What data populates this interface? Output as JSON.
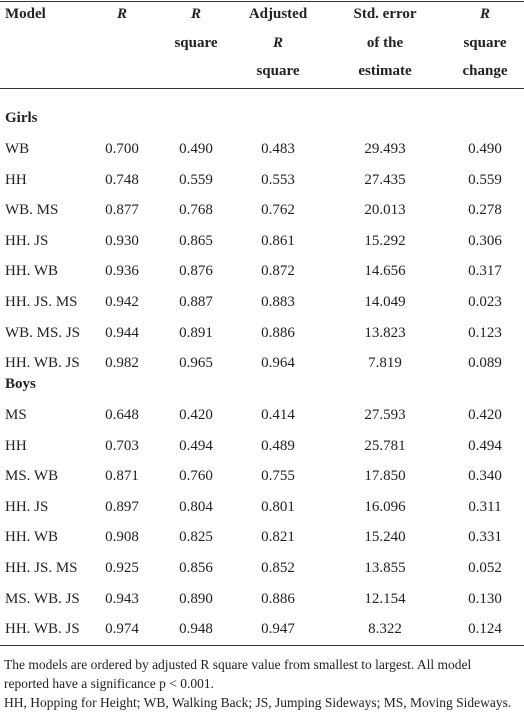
{
  "table": {
    "header": [
      [
        "Model"
      ],
      [
        "R"
      ],
      [
        "R",
        "square"
      ],
      [
        "Adjusted",
        "R",
        "square"
      ],
      [
        "Std. error",
        "of the",
        "estimate"
      ],
      [
        "R",
        "square",
        "change"
      ]
    ],
    "groups": [
      {
        "label": "Girls",
        "rows": [
          [
            "WB",
            "0.700",
            "0.490",
            "0.483",
            "29.493",
            "0.490"
          ],
          [
            "HH",
            "0.748",
            "0.559",
            "0.553",
            "27.435",
            "0.559"
          ],
          [
            "WB. MS",
            "0.877",
            "0.768",
            "0.762",
            "20.013",
            "0.278"
          ],
          [
            "HH. JS",
            "0.930",
            "0.865",
            "0.861",
            "15.292",
            "0.306"
          ],
          [
            "HH. WB",
            "0.936",
            "0.876",
            "0.872",
            "14.656",
            "0.317"
          ],
          [
            "HH. JS. MS",
            "0.942",
            "0.887",
            "0.883",
            "14.049",
            "0.023"
          ],
          [
            "WB. MS. JS",
            "0.944",
            "0.891",
            "0.886",
            "13.823",
            "0.123"
          ],
          [
            "HH. WB. JS",
            "0.982",
            "0.965",
            "0.964",
            "7.819",
            "0.089"
          ]
        ]
      },
      {
        "label": "Boys",
        "rows": [
          [
            "MS",
            "0.648",
            "0.420",
            "0.414",
            "27.593",
            "0.420"
          ],
          [
            "HH",
            "0.703",
            "0.494",
            "0.489",
            "25.781",
            "0.494"
          ],
          [
            "MS. WB",
            "0.871",
            "0.760",
            "0.755",
            "17.850",
            "0.340"
          ],
          [
            "HH. JS",
            "0.897",
            "0.804",
            "0.801",
            "16.096",
            "0.311"
          ],
          [
            "HH. WB",
            "0.908",
            "0.825",
            "0.821",
            "15.240",
            "0.331"
          ],
          [
            "HH. JS. MS",
            "0.925",
            "0.856",
            "0.852",
            "13.855",
            "0.052"
          ],
          [
            "MS. WB. JS",
            "0.943",
            "0.890",
            "0.886",
            "12.154",
            "0.130"
          ],
          [
            "HH. WB. JS",
            "0.974",
            "0.948",
            "0.947",
            "8.322",
            "0.124"
          ]
        ]
      }
    ],
    "notes": [
      "The models are ordered by adjusted R square value from smallest to largest. All model reported have a significance p < 0.001.",
      "HH, Hopping for Height; WB, Walking Back; JS, Jumping Sideways; MS, Moving Sideways."
    ]
  }
}
